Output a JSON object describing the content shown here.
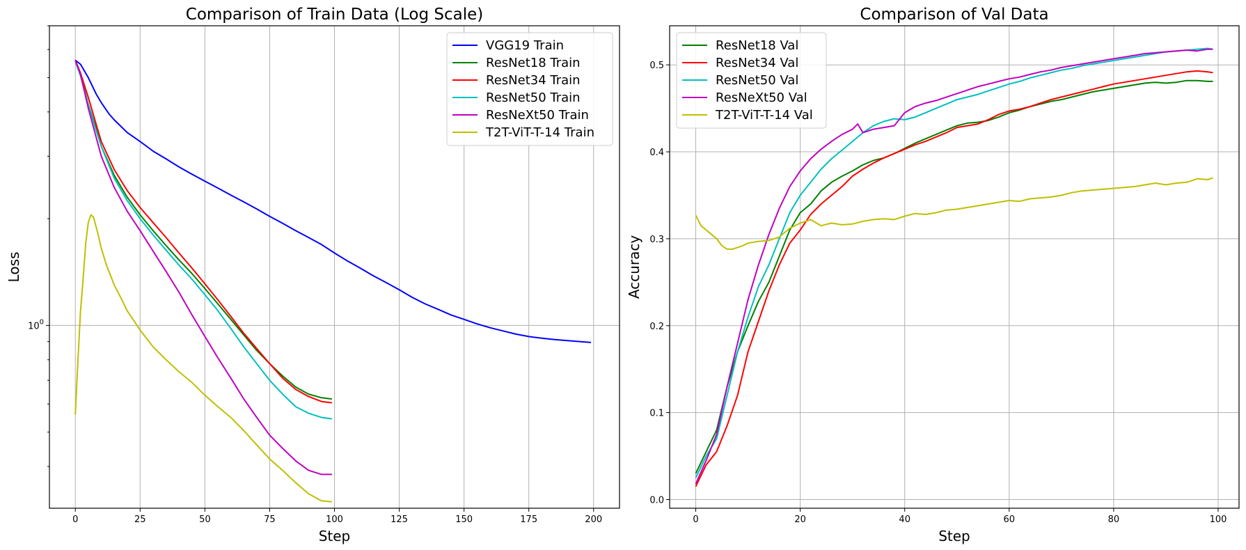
{
  "chart_data": [
    {
      "type": "line",
      "title": "Comparison of Train Data (Log Scale)",
      "xlabel": "Step",
      "ylabel": "Loss",
      "yscale": "log",
      "xlim": [
        -10,
        210
      ],
      "ylim": [
        0.305,
        7.0
      ],
      "xticks": [
        0,
        25,
        50,
        75,
        100,
        125,
        150,
        175,
        200
      ],
      "yticks": [
        {
          "value": 1.0,
          "label": "10^0"
        }
      ],
      "grid": true,
      "legend_position": "upper right",
      "series": [
        {
          "name": "VGG19 Train",
          "color": "#0000ff",
          "x": [
            0,
            2,
            5,
            8,
            10,
            13,
            15,
            20,
            25,
            28,
            30,
            35,
            40,
            45,
            50,
            55,
            60,
            65,
            70,
            75,
            80,
            85,
            90,
            95,
            100,
            105,
            110,
            115,
            120,
            125,
            130,
            135,
            140,
            145,
            150,
            155,
            160,
            165,
            170,
            175,
            180,
            185,
            190,
            195,
            199
          ],
          "y": [
            5.6,
            5.45,
            5.0,
            4.5,
            4.25,
            3.95,
            3.8,
            3.5,
            3.3,
            3.18,
            3.1,
            2.95,
            2.8,
            2.67,
            2.55,
            2.44,
            2.33,
            2.23,
            2.13,
            2.03,
            1.94,
            1.85,
            1.77,
            1.69,
            1.6,
            1.52,
            1.45,
            1.38,
            1.32,
            1.26,
            1.2,
            1.15,
            1.11,
            1.07,
            1.04,
            1.01,
            0.985,
            0.965,
            0.945,
            0.93,
            0.92,
            0.912,
            0.906,
            0.9,
            0.895
          ]
        },
        {
          "name": "ResNet18 Train",
          "color": "#008000",
          "x": [
            0,
            2,
            5,
            8,
            10,
            15,
            20,
            25,
            30,
            35,
            40,
            45,
            50,
            55,
            60,
            65,
            70,
            75,
            80,
            85,
            90,
            95,
            99
          ],
          "y": [
            5.6,
            5.1,
            4.2,
            3.6,
            3.2,
            2.65,
            2.3,
            2.05,
            1.85,
            1.68,
            1.53,
            1.4,
            1.27,
            1.15,
            1.04,
            0.94,
            0.85,
            0.78,
            0.72,
            0.67,
            0.64,
            0.625,
            0.62
          ]
        },
        {
          "name": "ResNet34 Train",
          "color": "#ff0000",
          "x": [
            0,
            2,
            5,
            8,
            10,
            15,
            20,
            25,
            30,
            35,
            40,
            45,
            50,
            55,
            60,
            65,
            70,
            75,
            80,
            85,
            90,
            95,
            99
          ],
          "y": [
            5.6,
            5.15,
            4.4,
            3.7,
            3.3,
            2.75,
            2.4,
            2.15,
            1.95,
            1.77,
            1.6,
            1.45,
            1.31,
            1.18,
            1.06,
            0.95,
            0.86,
            0.78,
            0.71,
            0.66,
            0.63,
            0.61,
            0.605
          ]
        },
        {
          "name": "ResNet50 Train",
          "color": "#00bfbf",
          "x": [
            0,
            2,
            5,
            8,
            10,
            15,
            20,
            25,
            30,
            35,
            40,
            45,
            50,
            55,
            60,
            65,
            70,
            75,
            80,
            85,
            90,
            95,
            99
          ],
          "y": [
            5.55,
            5.05,
            4.2,
            3.55,
            3.2,
            2.6,
            2.25,
            2.0,
            1.8,
            1.63,
            1.48,
            1.35,
            1.22,
            1.1,
            0.98,
            0.87,
            0.78,
            0.7,
            0.64,
            0.59,
            0.565,
            0.55,
            0.545
          ]
        },
        {
          "name": "ResNeXt50 Train",
          "color": "#bf00bf",
          "x": [
            0,
            2,
            5,
            8,
            10,
            15,
            20,
            25,
            30,
            35,
            40,
            45,
            50,
            55,
            60,
            65,
            70,
            75,
            80,
            85,
            90,
            95,
            99
          ],
          "y": [
            5.6,
            5.1,
            4.1,
            3.4,
            3.0,
            2.45,
            2.1,
            1.85,
            1.62,
            1.42,
            1.24,
            1.07,
            0.93,
            0.81,
            0.71,
            0.62,
            0.55,
            0.49,
            0.45,
            0.415,
            0.39,
            0.38,
            0.38
          ]
        },
        {
          "name": "T2T-ViT-T-14 Train",
          "color": "#bfbf00",
          "x": [
            0,
            1,
            2,
            3,
            4,
            5,
            6,
            7,
            8,
            9,
            10,
            12,
            15,
            18,
            20,
            25,
            30,
            35,
            40,
            45,
            50,
            55,
            60,
            65,
            70,
            75,
            80,
            85,
            90,
            95,
            99
          ],
          "y": [
            0.56,
            0.8,
            1.1,
            1.35,
            1.7,
            1.95,
            2.05,
            2.02,
            1.9,
            1.78,
            1.65,
            1.48,
            1.3,
            1.18,
            1.1,
            0.97,
            0.87,
            0.8,
            0.74,
            0.69,
            0.635,
            0.59,
            0.55,
            0.505,
            0.46,
            0.42,
            0.39,
            0.36,
            0.335,
            0.32,
            0.318
          ]
        }
      ]
    },
    {
      "type": "line",
      "title": "Comparison of Val Data",
      "xlabel": "Step",
      "ylabel": "Accuracy",
      "xlim": [
        -5,
        104
      ],
      "ylim": [
        -0.01,
        0.545
      ],
      "xticks": [
        0,
        20,
        40,
        60,
        80,
        100
      ],
      "yticks": [
        {
          "value": 0.0,
          "label": "0.0"
        },
        {
          "value": 0.1,
          "label": "0.1"
        },
        {
          "value": 0.2,
          "label": "0.2"
        },
        {
          "value": 0.3,
          "label": "0.3"
        },
        {
          "value": 0.4,
          "label": "0.4"
        },
        {
          "value": 0.5,
          "label": "0.5"
        }
      ],
      "grid": true,
      "legend_position": "upper left",
      "series": [
        {
          "name": "ResNet18 Val",
          "color": "#008000",
          "x": [
            0,
            2,
            4,
            6,
            8,
            10,
            12,
            14,
            16,
            18,
            20,
            22,
            24,
            26,
            28,
            30,
            32,
            34,
            36,
            38,
            40,
            42,
            44,
            46,
            48,
            50,
            52,
            54,
            56,
            58,
            60,
            62,
            64,
            66,
            68,
            70,
            72,
            74,
            76,
            78,
            80,
            82,
            84,
            86,
            88,
            90,
            92,
            94,
            96,
            98,
            99
          ],
          "y": [
            0.03,
            0.055,
            0.08,
            0.13,
            0.17,
            0.2,
            0.228,
            0.25,
            0.28,
            0.31,
            0.33,
            0.34,
            0.355,
            0.365,
            0.372,
            0.378,
            0.385,
            0.39,
            0.393,
            0.398,
            0.404,
            0.41,
            0.415,
            0.42,
            0.425,
            0.43,
            0.433,
            0.434,
            0.436,
            0.44,
            0.445,
            0.448,
            0.452,
            0.455,
            0.458,
            0.46,
            0.463,
            0.466,
            0.469,
            0.471,
            0.473,
            0.475,
            0.477,
            0.479,
            0.48,
            0.479,
            0.48,
            0.482,
            0.482,
            0.481,
            0.481
          ]
        },
        {
          "name": "ResNet34 Val",
          "color": "#ff0000",
          "x": [
            0,
            2,
            4,
            6,
            8,
            10,
            12,
            14,
            16,
            18,
            20,
            22,
            24,
            26,
            28,
            30,
            32,
            34,
            36,
            38,
            40,
            42,
            44,
            46,
            48,
            50,
            52,
            54,
            56,
            58,
            60,
            62,
            64,
            66,
            68,
            70,
            72,
            74,
            76,
            78,
            80,
            82,
            84,
            86,
            88,
            90,
            92,
            94,
            96,
            98,
            99
          ],
          "y": [
            0.015,
            0.04,
            0.055,
            0.085,
            0.12,
            0.17,
            0.205,
            0.24,
            0.27,
            0.295,
            0.31,
            0.328,
            0.34,
            0.35,
            0.36,
            0.372,
            0.38,
            0.387,
            0.393,
            0.398,
            0.403,
            0.408,
            0.412,
            0.417,
            0.422,
            0.428,
            0.43,
            0.432,
            0.437,
            0.443,
            0.447,
            0.449,
            0.452,
            0.456,
            0.46,
            0.463,
            0.466,
            0.469,
            0.472,
            0.475,
            0.478,
            0.48,
            0.482,
            0.484,
            0.486,
            0.488,
            0.49,
            0.492,
            0.493,
            0.492,
            0.491
          ]
        },
        {
          "name": "ResNet50 Val",
          "color": "#00bfbf",
          "x": [
            0,
            2,
            4,
            6,
            8,
            10,
            12,
            14,
            16,
            18,
            20,
            22,
            24,
            26,
            28,
            30,
            32,
            34,
            36,
            38,
            40,
            42,
            44,
            46,
            48,
            50,
            52,
            54,
            56,
            58,
            60,
            62,
            64,
            66,
            68,
            70,
            72,
            74,
            76,
            78,
            80,
            82,
            84,
            86,
            88,
            90,
            92,
            94,
            96,
            98,
            99
          ],
          "y": [
            0.025,
            0.05,
            0.07,
            0.12,
            0.17,
            0.21,
            0.245,
            0.27,
            0.3,
            0.33,
            0.35,
            0.365,
            0.38,
            0.392,
            0.402,
            0.412,
            0.422,
            0.43,
            0.435,
            0.438,
            0.437,
            0.44,
            0.445,
            0.45,
            0.455,
            0.46,
            0.463,
            0.466,
            0.47,
            0.474,
            0.478,
            0.481,
            0.485,
            0.488,
            0.491,
            0.494,
            0.496,
            0.499,
            0.501,
            0.503,
            0.505,
            0.507,
            0.509,
            0.511,
            0.513,
            0.515,
            0.516,
            0.517,
            0.518,
            0.519,
            0.518
          ]
        },
        {
          "name": "ResNeXt50 Val",
          "color": "#bf00bf",
          "x": [
            0,
            2,
            4,
            6,
            8,
            10,
            12,
            14,
            16,
            18,
            20,
            22,
            24,
            26,
            28,
            30,
            31,
            32,
            33,
            34,
            36,
            38,
            40,
            42,
            44,
            46,
            48,
            50,
            52,
            54,
            56,
            58,
            60,
            62,
            64,
            66,
            68,
            70,
            72,
            74,
            76,
            78,
            80,
            82,
            84,
            86,
            88,
            90,
            92,
            94,
            96,
            98,
            99
          ],
          "y": [
            0.018,
            0.045,
            0.075,
            0.13,
            0.18,
            0.23,
            0.27,
            0.305,
            0.335,
            0.36,
            0.378,
            0.392,
            0.403,
            0.412,
            0.42,
            0.426,
            0.432,
            0.422,
            0.424,
            0.426,
            0.428,
            0.43,
            0.445,
            0.452,
            0.456,
            0.459,
            0.463,
            0.467,
            0.471,
            0.475,
            0.478,
            0.481,
            0.484,
            0.486,
            0.489,
            0.492,
            0.494,
            0.497,
            0.499,
            0.501,
            0.503,
            0.505,
            0.507,
            0.509,
            0.511,
            0.513,
            0.514,
            0.515,
            0.516,
            0.517,
            0.516,
            0.518,
            0.518
          ]
        },
        {
          "name": "T2T-ViT-T-14 Val",
          "color": "#bfbf00",
          "x": [
            0,
            1,
            2,
            3,
            4,
            5,
            6,
            7,
            8,
            9,
            10,
            12,
            14,
            16,
            18,
            20,
            22,
            24,
            26,
            28,
            30,
            32,
            34,
            36,
            38,
            40,
            42,
            44,
            46,
            48,
            50,
            52,
            54,
            56,
            58,
            60,
            62,
            64,
            66,
            68,
            70,
            72,
            74,
            76,
            78,
            80,
            82,
            84,
            86,
            88,
            90,
            92,
            94,
            96,
            98,
            99
          ],
          "y": [
            0.327,
            0.315,
            0.31,
            0.305,
            0.3,
            0.292,
            0.288,
            0.288,
            0.29,
            0.292,
            0.295,
            0.297,
            0.298,
            0.302,
            0.312,
            0.318,
            0.322,
            0.315,
            0.318,
            0.316,
            0.317,
            0.32,
            0.322,
            0.323,
            0.322,
            0.326,
            0.329,
            0.328,
            0.33,
            0.333,
            0.334,
            0.336,
            0.338,
            0.34,
            0.342,
            0.344,
            0.343,
            0.346,
            0.347,
            0.348,
            0.35,
            0.353,
            0.355,
            0.356,
            0.357,
            0.358,
            0.359,
            0.36,
            0.362,
            0.364,
            0.362,
            0.364,
            0.365,
            0.369,
            0.368,
            0.37
          ]
        }
      ]
    }
  ]
}
